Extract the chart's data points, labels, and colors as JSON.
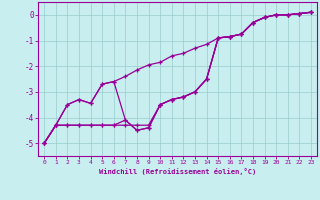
{
  "xlabel": "Windchill (Refroidissement éolien,°C)",
  "background_color": "#c8eef0",
  "grid_color": "#99cccc",
  "line_color": "#990099",
  "xlim": [
    -0.5,
    23.5
  ],
  "ylim": [
    -5.5,
    0.5
  ],
  "yticks": [
    0,
    -1,
    -2,
    -3,
    -4,
    -5
  ],
  "xticks": [
    0,
    1,
    2,
    3,
    4,
    5,
    6,
    7,
    8,
    9,
    10,
    11,
    12,
    13,
    14,
    15,
    16,
    17,
    18,
    19,
    20,
    21,
    22,
    23
  ],
  "line1_x": [
    0,
    1,
    2,
    3,
    4,
    5,
    6,
    7,
    8,
    9,
    10,
    11,
    12,
    13,
    14,
    15,
    16,
    17,
    18,
    19,
    20,
    21,
    22,
    23
  ],
  "line1_y": [
    -5.0,
    -4.3,
    -3.5,
    -3.3,
    -3.45,
    -2.7,
    -2.6,
    -4.1,
    -4.5,
    -4.4,
    -3.5,
    -3.3,
    -3.2,
    -3.0,
    -2.5,
    -0.9,
    -0.85,
    -0.75,
    -0.3,
    -0.1,
    0.0,
    0.0,
    0.05,
    0.1
  ],
  "line2_x": [
    0,
    1,
    2,
    3,
    4,
    5,
    6,
    7,
    8,
    9,
    10,
    11,
    12,
    13,
    14,
    15,
    16,
    17,
    18,
    19,
    20,
    21,
    22,
    23
  ],
  "line2_y": [
    -5.0,
    -4.3,
    -4.3,
    -4.3,
    -4.3,
    -4.3,
    -4.3,
    -4.1,
    -4.5,
    -4.4,
    -3.5,
    -3.3,
    -3.2,
    -3.0,
    -2.5,
    -0.9,
    -0.85,
    -0.75,
    -0.3,
    -0.1,
    0.0,
    0.0,
    0.05,
    0.1
  ],
  "line3_x": [
    0,
    1,
    2,
    3,
    4,
    5,
    6,
    7,
    8,
    9,
    10,
    11,
    12,
    13,
    14,
    15,
    16,
    17,
    18,
    19,
    20,
    21,
    22,
    23
  ],
  "line3_y": [
    -5.0,
    -4.3,
    -3.5,
    -3.3,
    -3.45,
    -2.7,
    -2.6,
    -2.4,
    -2.15,
    -1.95,
    -1.85,
    -1.6,
    -1.5,
    -1.3,
    -1.15,
    -0.9,
    -0.85,
    -0.75,
    -0.3,
    -0.1,
    0.0,
    0.0,
    0.05,
    0.1
  ],
  "line4_x": [
    0,
    1,
    2,
    3,
    4,
    5,
    6,
    7,
    8,
    9,
    10,
    11,
    12,
    13,
    14,
    15,
    16,
    17,
    18,
    19,
    20,
    21,
    22,
    23
  ],
  "line4_y": [
    -5.0,
    -4.3,
    -4.3,
    -4.3,
    -4.3,
    -4.3,
    -4.3,
    -4.3,
    -4.3,
    -4.3,
    -3.5,
    -3.3,
    -3.2,
    -3.0,
    -2.5,
    -0.9,
    -0.85,
    -0.75,
    -0.3,
    -0.1,
    0.0,
    0.0,
    0.05,
    0.1
  ]
}
